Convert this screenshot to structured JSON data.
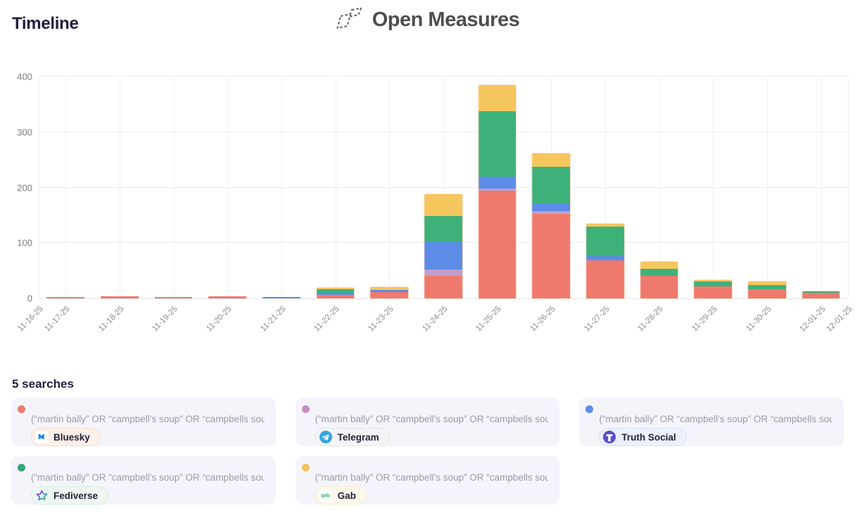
{
  "header": {
    "page_title": "Timeline",
    "brand": "Open Measures"
  },
  "chart_data": {
    "type": "bar",
    "stacked": true,
    "title": "Timeline",
    "xlabel": "",
    "ylabel": "",
    "ylim": [
      0,
      400
    ],
    "y_ticks": [
      0,
      100,
      200,
      300,
      400
    ],
    "grid": true,
    "x_tick_labels": [
      "11-16-25",
      "11-17-25",
      "11-18-25",
      "11-19-25",
      "11-20-25",
      "11-21-25",
      "11-22-25",
      "11-23-25",
      "11-24-25",
      "11-25-25",
      "11-26-25",
      "11-27-25",
      "11-28-25",
      "11-29-25",
      "11-30-25",
      "12-01-25",
      "12-01-25"
    ],
    "categories": [
      "11-17-25",
      "11-18-25",
      "11-19-25",
      "11-20-25",
      "11-21-25",
      "11-22-25",
      "11-23-25",
      "11-24-25",
      "11-25-25",
      "11-26-25",
      "11-27-25",
      "11-28-25",
      "11-29-25",
      "11-30-25",
      "12-01-25"
    ],
    "series": [
      {
        "name": "Bluesky",
        "color": "#f0796e",
        "values": [
          2,
          4,
          2,
          4,
          0,
          7,
          11,
          41,
          194,
          153,
          68,
          41,
          22,
          16,
          10
        ]
      },
      {
        "name": "Telegram",
        "color": "#bfa0cd",
        "values": [
          0,
          0,
          0,
          0,
          0,
          0,
          0,
          11,
          4,
          5,
          0,
          0,
          0,
          0,
          0
        ]
      },
      {
        "name": "Truth Social",
        "color": "#5c8ce8",
        "values": [
          0,
          0,
          0,
          0,
          2,
          3,
          4,
          50,
          22,
          13,
          8,
          0,
          0,
          0,
          0
        ]
      },
      {
        "name": "Fediverse",
        "color": "#3db179",
        "values": [
          0,
          0,
          0,
          0,
          0,
          6,
          0,
          47,
          118,
          66,
          53,
          13,
          8,
          8,
          3
        ]
      },
      {
        "name": "Gab",
        "color": "#f6c65e",
        "values": [
          0,
          0,
          0,
          0,
          0,
          3,
          6,
          39,
          47,
          25,
          6,
          12,
          3,
          7,
          0
        ]
      }
    ],
    "legend_position": "bottom-cards"
  },
  "searches": {
    "heading": "5 searches",
    "items": [
      {
        "platform": "Bluesky",
        "icon": "bluesky-icon",
        "query": "(“martin bally” OR “campbell’s soup” OR “campbells sou…",
        "dot_color": "#e97d6f",
        "pill_bg": "#fdefe9",
        "pill_border": "#f2c7b6"
      },
      {
        "platform": "Telegram",
        "icon": "telegram-icon",
        "query": "(“martin bally” OR “campbell’s soup” OR “campbells sou…",
        "dot_color": "#c38fc5",
        "pill_bg": "#f4f4f6",
        "pill_border": "#d8d8dd"
      },
      {
        "platform": "Truth Social",
        "icon": "truth-social-icon",
        "query": "(“martin bally” OR “campbell’s soup” OR “campbells sou…",
        "dot_color": "#5b8def",
        "pill_bg": "#eef1fb",
        "pill_border": "#c3cdf1"
      },
      {
        "platform": "Fediverse",
        "icon": "fediverse-icon",
        "query": "(“martin bally” OR “campbell’s soup” OR “campbells sou…",
        "dot_color": "#35a877",
        "pill_bg": "#edf6f1",
        "pill_border": "#bedfcd"
      },
      {
        "platform": "Gab",
        "icon": "gab-icon",
        "query": "(“martin bally” OR “campbell’s soup” OR “campbells sou…",
        "dot_color": "#f2c25e",
        "pill_bg": "#fdf8ea",
        "pill_border": "#f0dfae"
      }
    ]
  }
}
